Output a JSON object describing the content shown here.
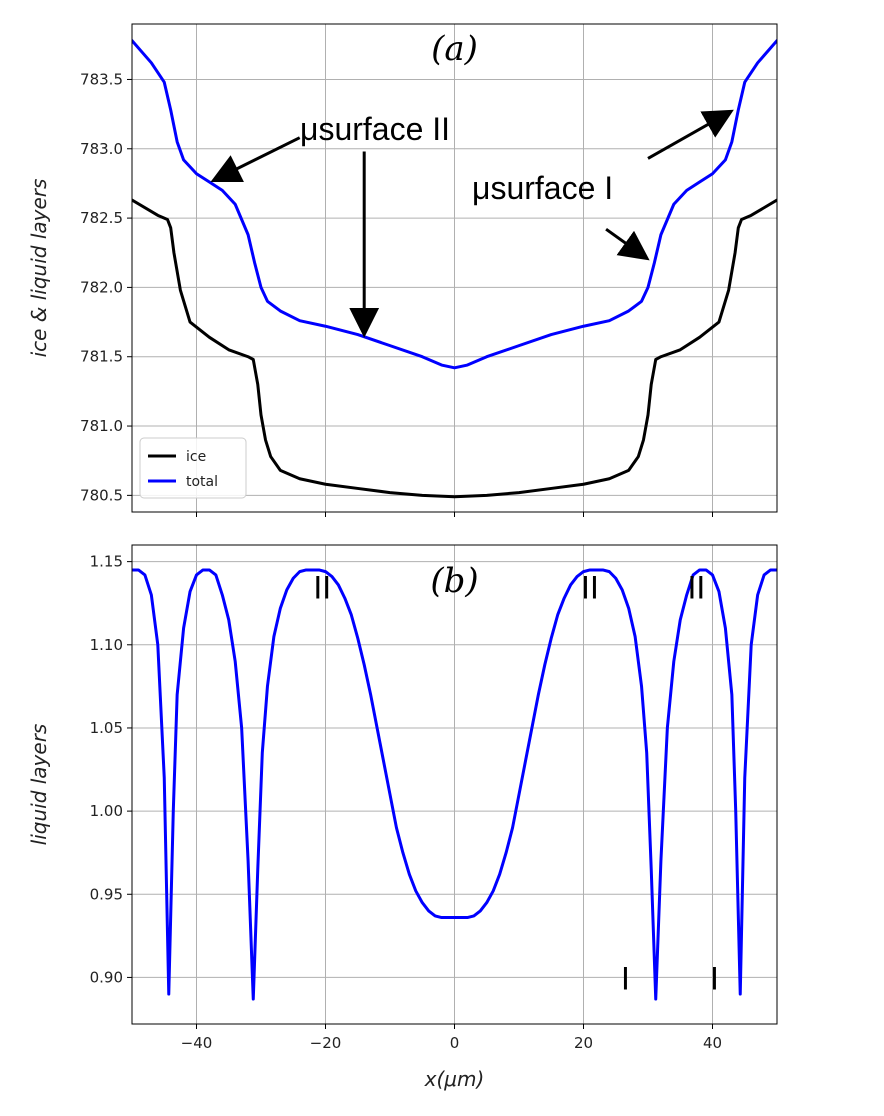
{
  "chart_data": [
    {
      "id": "a",
      "type": "line",
      "panel_label": "(a)",
      "xlabel": "",
      "ylabel": "ice & liquid layers",
      "xlim": [
        -50,
        50
      ],
      "ylim": [
        780.38,
        783.9
      ],
      "xticks": [
        -40,
        -20,
        0,
        20,
        40
      ],
      "yticks": [
        "780.5",
        "781.0",
        "781.5",
        "782.0",
        "782.5",
        "783.0",
        "783.5"
      ],
      "grid": true,
      "legend_position": "lower-left",
      "series": [
        {
          "name": "ice",
          "color": "#000000",
          "x": [
            -50,
            -46,
            -44.5,
            -44,
            -43.5,
            -42.5,
            -41,
            -38,
            -35,
            -32,
            -31.2,
            -30.5,
            -30,
            -29.3,
            -28.5,
            -27,
            -24,
            -20,
            -15,
            -10,
            -5,
            0,
            5,
            10,
            15,
            20,
            24,
            27,
            28.5,
            29.3,
            30,
            30.5,
            31.2,
            32,
            35,
            38,
            41,
            42.5,
            43.5,
            44,
            44.5,
            46,
            50
          ],
          "y": [
            782.63,
            782.52,
            782.49,
            782.43,
            782.25,
            781.98,
            781.75,
            781.64,
            781.55,
            781.5,
            781.48,
            781.3,
            781.08,
            780.9,
            780.78,
            780.68,
            780.62,
            780.58,
            780.55,
            780.52,
            780.5,
            780.49,
            780.5,
            780.52,
            780.55,
            780.58,
            780.62,
            780.68,
            780.78,
            780.9,
            781.08,
            781.3,
            781.48,
            781.5,
            781.55,
            781.64,
            781.75,
            781.98,
            782.25,
            782.43,
            782.49,
            782.52,
            782.63
          ]
        },
        {
          "name": "total",
          "color": "#0000ff",
          "x": [
            -50,
            -47,
            -45,
            -44,
            -43,
            -42,
            -40,
            -38,
            -36,
            -34,
            -32,
            -31,
            -30,
            -29,
            -27,
            -24,
            -20,
            -15,
            -10,
            -5,
            -2,
            0,
            2,
            5,
            10,
            15,
            20,
            24,
            27,
            29,
            30,
            31,
            32,
            34,
            36,
            38,
            40,
            42,
            43,
            44,
            45,
            47,
            50
          ],
          "y": [
            783.78,
            783.62,
            783.48,
            783.28,
            783.05,
            782.92,
            782.82,
            782.76,
            782.7,
            782.6,
            782.38,
            782.18,
            782.0,
            781.9,
            781.83,
            781.76,
            781.72,
            781.66,
            781.58,
            781.5,
            781.44,
            781.42,
            781.44,
            781.5,
            781.58,
            781.66,
            781.72,
            781.76,
            781.83,
            781.9,
            782.0,
            782.18,
            782.38,
            782.6,
            782.7,
            782.76,
            782.82,
            782.92,
            783.05,
            783.28,
            783.48,
            783.62,
            783.78
          ]
        }
      ],
      "annotations": [
        {
          "text": "μsurface II",
          "arrows": [
            {
              "from": [
                -24,
                783.08
              ],
              "to": [
                -37,
                782.78
              ]
            },
            {
              "from": [
                -14,
                782.98
              ],
              "to": [
                -14,
                781.68
              ]
            }
          ]
        },
        {
          "text": "μsurface I",
          "arrows": [
            {
              "from": [
                30,
                782.93
              ],
              "to": [
                42.5,
                783.26
              ]
            },
            {
              "from": [
                23.5,
                782.42
              ],
              "to": [
                29.5,
                782.22
              ]
            }
          ]
        }
      ]
    },
    {
      "id": "b",
      "type": "line",
      "panel_label": "(b)",
      "xlabel": "x(μm)",
      "ylabel": "liquid layers",
      "xlim": [
        -50,
        50
      ],
      "ylim": [
        0.872,
        1.16
      ],
      "xticks": [
        -40,
        -20,
        0,
        20,
        40
      ],
      "yticks": [
        "0.90",
        "0.95",
        "1.00",
        "1.05",
        "1.10",
        "1.15"
      ],
      "grid": true,
      "series": [
        {
          "name": "",
          "color": "#0000ff",
          "x": [
            -50,
            -49,
            -48,
            -47,
            -46,
            -45,
            -44.3,
            -43.6,
            -43,
            -42,
            -41,
            -40,
            -39,
            -38,
            -37,
            -36,
            -35,
            -34,
            -33,
            -32,
            -31.2,
            -30.5,
            -29.8,
            -29,
            -28,
            -27,
            -26,
            -25,
            -24,
            -23,
            -22,
            -21,
            -20,
            -19,
            -18,
            -17,
            -16,
            -15,
            -14,
            -13,
            -12,
            -11,
            -10,
            -9,
            -8,
            -7,
            -6,
            -5,
            -4,
            -3,
            -2,
            -1,
            0,
            1,
            2,
            3,
            4,
            5,
            6,
            7,
            8,
            9,
            10,
            11,
            12,
            13,
            14,
            15,
            16,
            17,
            18,
            19,
            20,
            21,
            22,
            23,
            24,
            25,
            26,
            27,
            28,
            29,
            29.8,
            30.5,
            31.2,
            32,
            33,
            34,
            35,
            36,
            37,
            38,
            39,
            40,
            41,
            42,
            43,
            43.6,
            44.3,
            45,
            46,
            47,
            48,
            49,
            50
          ],
          "y": [
            1.145,
            1.145,
            1.142,
            1.13,
            1.1,
            1.02,
            0.89,
            1.0,
            1.07,
            1.11,
            1.132,
            1.142,
            1.145,
            1.145,
            1.142,
            1.13,
            1.115,
            1.09,
            1.05,
            0.97,
            0.887,
            0.965,
            1.035,
            1.075,
            1.105,
            1.122,
            1.133,
            1.14,
            1.144,
            1.145,
            1.145,
            1.145,
            1.144,
            1.141,
            1.136,
            1.128,
            1.118,
            1.104,
            1.088,
            1.07,
            1.05,
            1.03,
            1.01,
            0.99,
            0.975,
            0.962,
            0.952,
            0.945,
            0.94,
            0.937,
            0.936,
            0.936,
            0.936,
            0.936,
            0.936,
            0.937,
            0.94,
            0.945,
            0.952,
            0.962,
            0.975,
            0.99,
            1.01,
            1.03,
            1.05,
            1.07,
            1.088,
            1.104,
            1.118,
            1.128,
            1.136,
            1.141,
            1.144,
            1.145,
            1.145,
            1.145,
            1.144,
            1.14,
            1.133,
            1.122,
            1.105,
            1.075,
            1.035,
            0.965,
            0.887,
            0.97,
            1.05,
            1.09,
            1.115,
            1.13,
            1.142,
            1.145,
            1.145,
            1.142,
            1.132,
            1.11,
            1.07,
            1.0,
            0.89,
            1.02,
            1.1,
            1.13,
            1.142,
            1.145,
            1.145
          ]
        }
      ],
      "region_labels": [
        {
          "text": "II",
          "x": -20.5,
          "y": 1.135
        },
        {
          "text": "II",
          "x": 21,
          "y": 1.135
        },
        {
          "text": "II",
          "x": 37.5,
          "y": 1.135
        },
        {
          "text": "I",
          "x": 26.5,
          "y": 0.9
        },
        {
          "text": "I",
          "x": 40.3,
          "y": 0.9
        }
      ]
    }
  ]
}
